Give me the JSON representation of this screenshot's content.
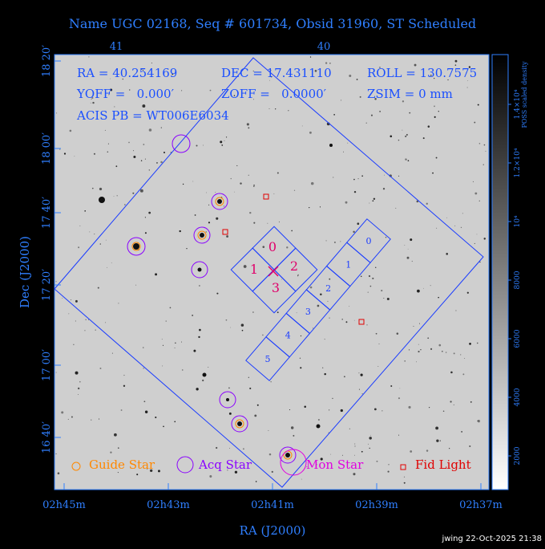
{
  "header": {
    "title": "Name UGC 02168, Seq # 601734, Obsid 31960, ST Scheduled"
  },
  "top_axis": {
    "ticks": [
      "41",
      "40"
    ]
  },
  "info": {
    "ra": "RA = 40.254169",
    "dec": "DEC = 17.431110",
    "roll": "ROLL = 130.7575",
    "yoff": "YOFF =   0.000′",
    "zoff": "ZOFF =   0.0000′",
    "zsim": "ZSIM = 0 mm",
    "acis": "ACIS PB = WT006E6034"
  },
  "y_axis": {
    "label": "Dec (J2000)",
    "ticks": [
      "18 20′",
      "18 00′",
      "17 40′",
      "17 20′",
      "17 00′",
      "16 40′"
    ]
  },
  "x_axis": {
    "label": "RA (J2000)",
    "ticks": [
      "02h45m",
      "02h43m",
      "02h41m",
      "02h39m",
      "02h37m"
    ]
  },
  "colorbar": {
    "label": "POSS scaled density",
    "ticks": [
      "2000",
      "4000",
      "6000",
      "8000",
      "10⁴",
      "1.2×10⁴",
      "1.4×10⁴"
    ]
  },
  "legend": {
    "guide": "Guide Star",
    "acq": "Acq Star",
    "mon": "Mon Star",
    "fid": "Fid Light"
  },
  "acis_i": {
    "chips": [
      "0",
      "1",
      "2",
      "3"
    ]
  },
  "acis_s": {
    "chips": [
      "0",
      "1",
      "2",
      "3",
      "4",
      "5"
    ]
  },
  "footer": {
    "stamp": "jwing 22-Oct-2025 21:38"
  }
}
